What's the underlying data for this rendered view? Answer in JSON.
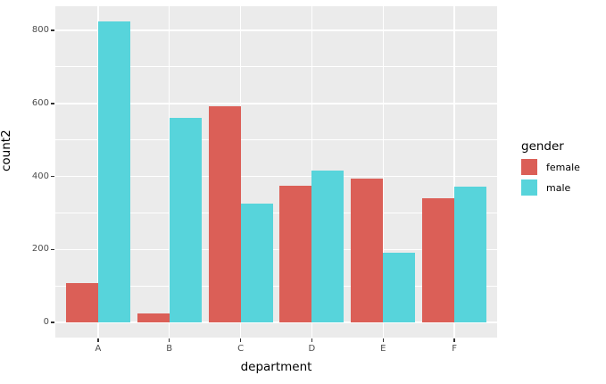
{
  "figure": {
    "background": "#ffffff",
    "panel_background": "#ebebeb",
    "grid_color": "#ffffff",
    "tick_color": "#333333",
    "tick_label_color": "#4d4d4d"
  },
  "chart_data": {
    "type": "bar",
    "mode": "grouped-dodge",
    "title": "",
    "xlabel": "department",
    "ylabel": "count2",
    "categories": [
      "A",
      "B",
      "C",
      "D",
      "E",
      "F"
    ],
    "series": [
      {
        "name": "female",
        "color": "#db5f57",
        "values": [
          108,
          25,
          593,
          375,
          393,
          341
        ]
      },
      {
        "name": "male",
        "color": "#57d4db",
        "values": [
          825,
          560,
          325,
          417,
          191,
          373
        ]
      }
    ],
    "y_major_ticks": [
      0,
      200,
      400,
      600,
      800
    ],
    "y_minor_ticks": [
      100,
      300,
      500,
      700
    ],
    "ylim_internal": [
      -41.25,
      866.25
    ],
    "grid": true,
    "legend": {
      "title": "gender",
      "position": "right"
    }
  }
}
